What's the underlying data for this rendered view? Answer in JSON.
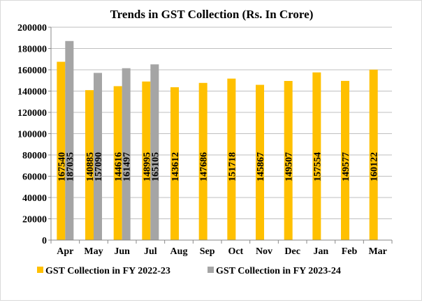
{
  "chart_data": {
    "type": "bar",
    "title": "Trends in GST Collection (Rs. In Crore)",
    "xlabel": "",
    "ylabel": "",
    "ylim": [
      0,
      200000
    ],
    "yticks": [
      0,
      20000,
      40000,
      60000,
      80000,
      100000,
      120000,
      140000,
      160000,
      180000,
      200000
    ],
    "grid": true,
    "legend_position": "bottom",
    "categories": [
      "Apr",
      "May",
      "Jun",
      "Jul",
      "Aug",
      "Sep",
      "Oct",
      "Nov",
      "Dec",
      "Jan",
      "Feb",
      "Mar"
    ],
    "series": [
      {
        "name": "GST Collection in FY 2022-23",
        "color": "#FFC000",
        "values": [
          167540,
          140885,
          144616,
          148995,
          143612,
          147686,
          151718,
          145867,
          149507,
          157554,
          149577,
          160122
        ]
      },
      {
        "name": "GST Collection in FY 2023-24",
        "color": "#A5A5A5",
        "values": [
          187035,
          157090,
          161497,
          165105,
          null,
          null,
          null,
          null,
          null,
          null,
          null,
          null
        ]
      }
    ]
  }
}
